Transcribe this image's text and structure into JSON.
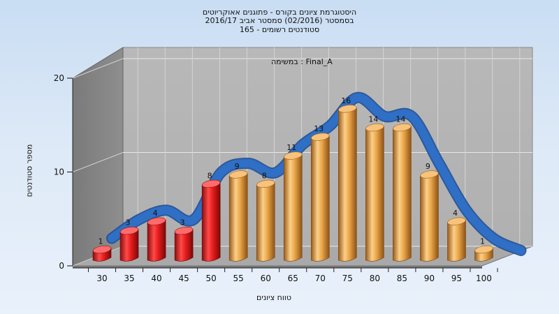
{
  "chart_data": {
    "type": "bar",
    "title_lines": [
      "היסטוגרמת ציונים בקורס - פתוגנים אאוקריוטים",
      "בסמסטר  (02/2016)  סמסטר אביב 2016/17",
      "סטודנטים רשומים - 165"
    ],
    "subtitle": "במשימה : Final_A",
    "xlabel": "טווח ציונים",
    "ylabel": "מספר סטודנטים",
    "categories": [
      "30",
      "35",
      "40",
      "45",
      "50",
      "55",
      "60",
      "65",
      "70",
      "75",
      "80",
      "85",
      "90",
      "95",
      "100"
    ],
    "values": [
      1,
      3,
      4,
      3,
      8,
      9,
      8,
      11,
      13,
      16,
      14,
      14,
      9,
      4,
      1
    ],
    "value_labels": [
      "1",
      "3",
      "4",
      "3",
      "8",
      "9",
      "8",
      "11",
      "13",
      "16",
      "14",
      "14",
      "9",
      "4",
      "1"
    ],
    "ylim": [
      0,
      20
    ],
    "y_ticks": [
      "0",
      "10",
      "20"
    ],
    "bar_colors": [
      "red",
      "red",
      "red",
      "red",
      "red",
      "orange",
      "orange",
      "orange",
      "orange",
      "orange",
      "orange",
      "orange",
      "orange",
      "orange",
      "orange"
    ],
    "colors": {
      "red": "#e02020",
      "orange": "#e8a040",
      "curve": "#2f6fc6"
    },
    "grid": true
  }
}
